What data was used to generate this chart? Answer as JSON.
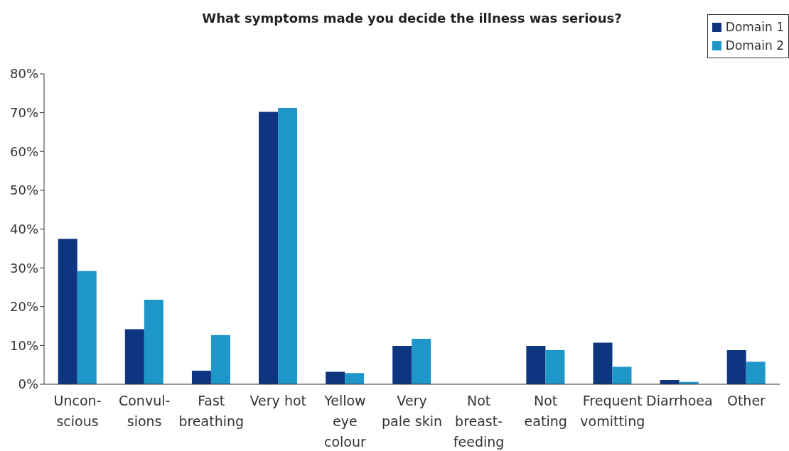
{
  "chart_data": {
    "type": "bar",
    "title": "What symptoms made you decide the illness was serious?",
    "categories": [
      "Uncon-\nscious",
      "Convul-\nsions",
      "Fast\nbreathing",
      "Very hot",
      "Yellow\neye\ncolour",
      "Very\npale skin",
      "Not\nbreast-\nfeeding",
      "Not\neating",
      "Frequent\nvomitting",
      "Diarrhoea",
      "Other"
    ],
    "series": [
      {
        "name": "Domain 1",
        "color": "#0d3580",
        "values": [
          37.5,
          14.2,
          3.5,
          70.2,
          3.2,
          9.9,
          0,
          9.9,
          10.7,
          1.1,
          8.8
        ]
      },
      {
        "name": "Domain 2",
        "color": "#1e96c8",
        "values": [
          29.2,
          21.8,
          12.7,
          71.2,
          2.9,
          11.7,
          0,
          8.8,
          4.5,
          0.6,
          5.8
        ]
      }
    ],
    "ylim": [
      0,
      80
    ],
    "yticks": [
      {
        "value": 0,
        "label": "0%"
      },
      {
        "value": 10,
        "label": "10%"
      },
      {
        "value": 20,
        "label": "20%"
      },
      {
        "value": 30,
        "label": "30%"
      },
      {
        "value": 40,
        "label": "40%"
      },
      {
        "value": 50,
        "label": "50%"
      },
      {
        "value": 60,
        "label": "60%"
      },
      {
        "value": 70,
        "label": "70%"
      },
      {
        "value": 80,
        "label": "80%"
      }
    ],
    "grid": false,
    "legend": "top right"
  }
}
